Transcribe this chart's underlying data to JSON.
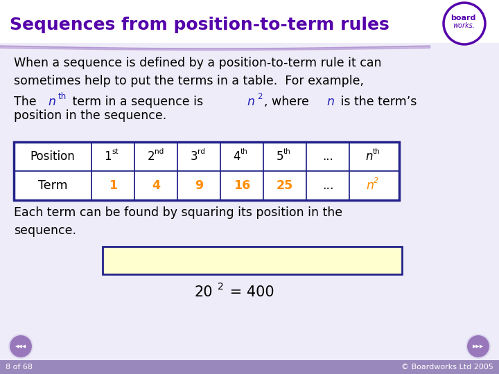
{
  "title": "Sequences from position-to-term rules",
  "title_color": "#5500AA",
  "slide_bg": "#EEECf8",
  "white": "#FFFFFF",
  "para1": "When a sequence is defined by a position-to-term rule it can\nsometimes help to put the terms in a table.  For example,",
  "text_color": "#000000",
  "italic_color": "#2222BB",
  "orange_color": "#FF8C00",
  "table_border_color": "#22228A",
  "table_headers": [
    "Position",
    "1",
    "2",
    "3",
    "4",
    "5",
    "...",
    "n"
  ],
  "table_header_sups": [
    "",
    "st",
    "nd",
    "rd",
    "th",
    "th",
    "",
    "th"
  ],
  "table_terms": [
    "Term",
    "1",
    "4",
    "9",
    "16",
    "25",
    "...",
    "n"
  ],
  "table_term_sups": [
    "",
    "",
    "",
    "",
    "",
    "",
    "",
    "2"
  ],
  "para3": "Each term can be found by squaring its position in the\nsequence.",
  "box_fill": "#FFFFD0",
  "box_border": "#22228A",
  "footer_left": "8 of 68",
  "footer_right": "© Boardworks Ltd 2005",
  "footer_color": "#FFFFFF",
  "footer_bg": "#9988BB",
  "divider_color": "#AA88CC",
  "logo_color": "#5500AA"
}
